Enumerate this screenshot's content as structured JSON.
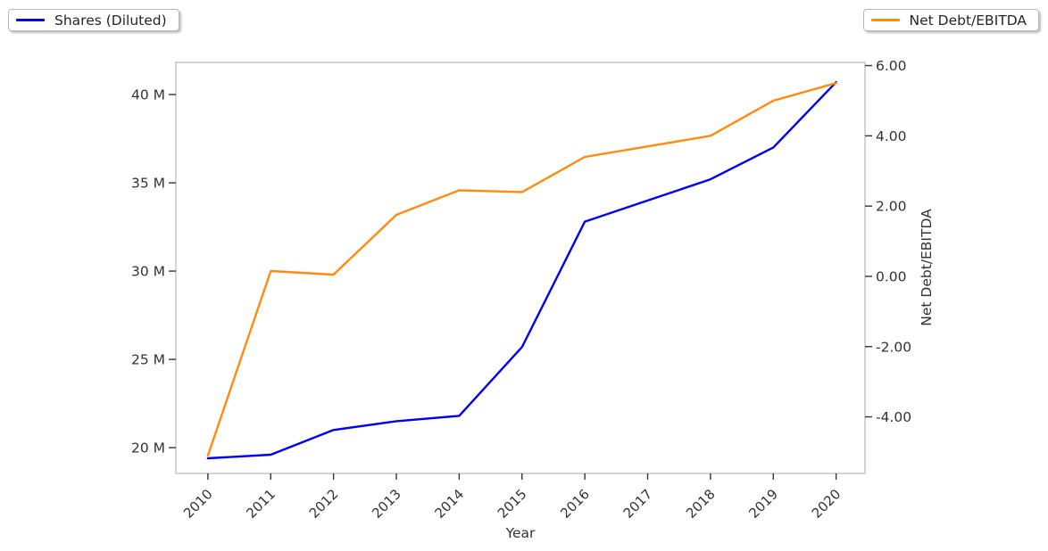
{
  "legend_left": {
    "label": "Shares (Diluted)"
  },
  "legend_right": {
    "label": "Net Debt/EBITDA"
  },
  "colors": {
    "shares_line": "#0000f0",
    "netdebt_line": "#ff8c0e",
    "axis_text": "#333333",
    "plot_border": "#d4d4d4"
  },
  "chart_data": {
    "type": "line",
    "title": "",
    "xlabel": "Year",
    "x": [
      2010,
      2011,
      2012,
      2013,
      2014,
      2015,
      2016,
      2017,
      2018,
      2019,
      2020
    ],
    "x_tick_labels": [
      "2010",
      "2011",
      "2012",
      "2013",
      "2014",
      "2015",
      "2016",
      "2017",
      "2018",
      "2019",
      "2020"
    ],
    "x_range": [
      2009.49,
      2020.46
    ],
    "grid": false,
    "legend_positions": [
      "top-left-outside",
      "top-right-outside"
    ],
    "series": [
      {
        "name": "Shares (Diluted)",
        "axis": "left",
        "color": "#0000f0",
        "values": [
          19.4,
          19.6,
          21.0,
          21.5,
          21.8,
          25.7,
          32.8,
          34.0,
          35.2,
          37.0,
          40.7
        ],
        "unit": "M"
      },
      {
        "name": "Net Debt/EBITDA",
        "axis": "right",
        "color": "#ff8c0e",
        "values": [
          -5.1,
          0.15,
          0.05,
          1.75,
          2.45,
          2.4,
          3.4,
          3.7,
          4.0,
          5.0,
          5.5
        ]
      }
    ],
    "left_axis": {
      "tick_labels": [
        "20 M",
        "25 M",
        "30 M",
        "35 M",
        "40 M"
      ],
      "tick_values": [
        20,
        25,
        30,
        35,
        40
      ],
      "range": [
        18.54,
        41.82
      ]
    },
    "right_axis": {
      "label": "Net Debt/EBITDA",
      "tick_labels": [
        "-4.00",
        "-2.00",
        "0.00",
        "2.00",
        "4.00",
        "6.00"
      ],
      "tick_values": [
        -4,
        -2,
        0,
        2,
        4,
        6
      ],
      "range": [
        -5.61,
        6.09
      ]
    }
  }
}
